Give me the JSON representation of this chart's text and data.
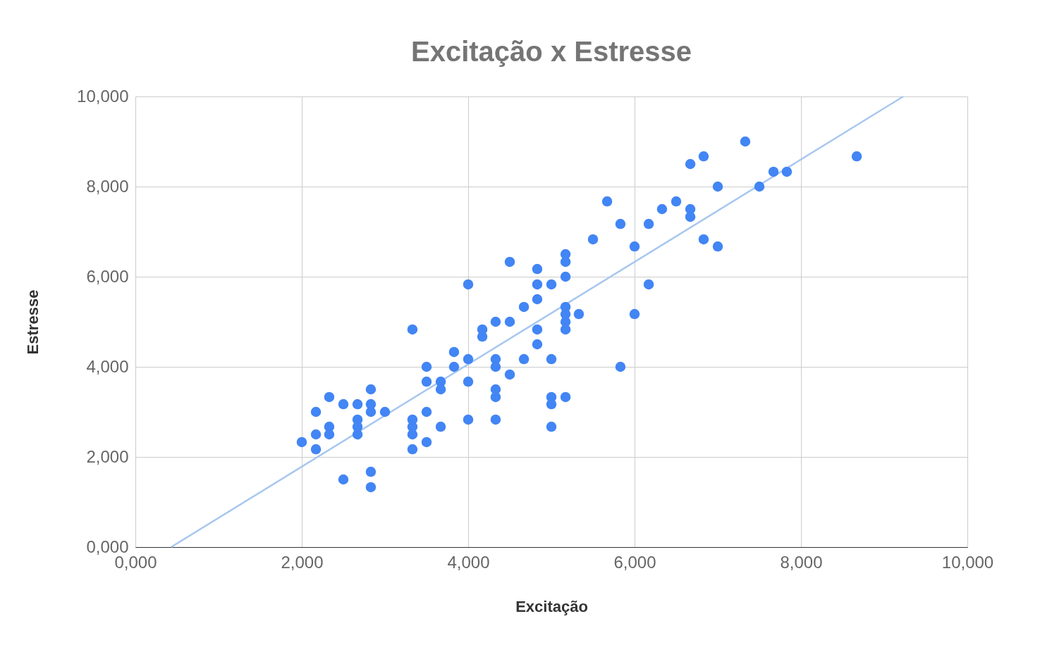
{
  "chart_data": {
    "type": "scatter",
    "title": "Excitação x Estresse",
    "xlabel": "Excitação",
    "ylabel": "Estresse",
    "xlim": [
      0,
      10
    ],
    "ylim": [
      0,
      10
    ],
    "xticks": [
      {
        "value": 0,
        "label": "0,000"
      },
      {
        "value": 2,
        "label": "2,000"
      },
      {
        "value": 4,
        "label": "4,000"
      },
      {
        "value": 6,
        "label": "6,000"
      },
      {
        "value": 8,
        "label": "8,000"
      },
      {
        "value": 10,
        "label": "10,000"
      }
    ],
    "yticks": [
      {
        "value": 0,
        "label": "0,000"
      },
      {
        "value": 2,
        "label": "2,000"
      },
      {
        "value": 4,
        "label": "4,000"
      },
      {
        "value": 6,
        "label": "6,000"
      },
      {
        "value": 8,
        "label": "8,000"
      },
      {
        "value": 10,
        "label": "10,000"
      }
    ],
    "grid": true,
    "marker": "circle",
    "series": [
      {
        "color": "#4285f4",
        "x": [
          2,
          2.17,
          2.17,
          2.17,
          2.33,
          2.33,
          2.33,
          2.5,
          2.5,
          2.67,
          2.67,
          2.67,
          2.67,
          2.83,
          2.83,
          2.83,
          2.83,
          2.83,
          3,
          3.33,
          3.33,
          3.33,
          3.33,
          3.33,
          3.5,
          3.5,
          3.5,
          3.5,
          3.67,
          3.67,
          3.67,
          3.83,
          3.83,
          4,
          4,
          4,
          4,
          4.17,
          4.17,
          4.33,
          4.33,
          4.33,
          4.33,
          4.33,
          4.33,
          4.5,
          4.5,
          4.5,
          4.67,
          4.67,
          4.83,
          4.83,
          4.83,
          4.83,
          4.83,
          5,
          5,
          5,
          5,
          5,
          5.17,
          5.17,
          5.17,
          5.17,
          5.17,
          5.17,
          5.17,
          5.17,
          5.33,
          5.5,
          5.67,
          5.83,
          5.83,
          6,
          6,
          6.17,
          6.17,
          6.33,
          6.5,
          6.67,
          6.67,
          6.67,
          6.83,
          6.83,
          7,
          7,
          7.33,
          7.5,
          7.67,
          7.83,
          8.67
        ],
        "values": [
          2.33,
          3,
          2.5,
          2.17,
          3.33,
          2.67,
          2.5,
          3.17,
          1.5,
          3.17,
          2.83,
          2.67,
          2.5,
          3.5,
          3.17,
          3,
          1.67,
          1.33,
          3,
          4.83,
          2.83,
          2.67,
          2.5,
          2.17,
          4,
          3.67,
          3,
          2.33,
          3.67,
          3.5,
          2.67,
          4.33,
          4,
          5.83,
          4.17,
          3.67,
          2.83,
          4.83,
          4.67,
          5,
          4.17,
          4,
          3.5,
          3.33,
          2.83,
          6.33,
          5,
          3.83,
          5.33,
          4.17,
          6.17,
          5.83,
          5.5,
          4.83,
          4.5,
          5.83,
          4.17,
          3.33,
          3.17,
          2.67,
          6.5,
          6.33,
          6,
          5.33,
          5.17,
          5,
          4.83,
          3.33,
          5.17,
          6.83,
          7.67,
          7.17,
          4,
          6.67,
          5.17,
          7.17,
          5.83,
          7.5,
          7.67,
          8.5,
          7.5,
          7.33,
          8.67,
          6.83,
          8,
          6.67,
          9,
          8,
          8.33,
          8.33,
          8.67
        ]
      },
      {
        "type": "line",
        "color": "#a8c7f0",
        "line_style": "solid",
        "marker": "none",
        "x": [
          0.43,
          9.23
        ],
        "values": [
          0,
          10
        ]
      }
    ]
  }
}
